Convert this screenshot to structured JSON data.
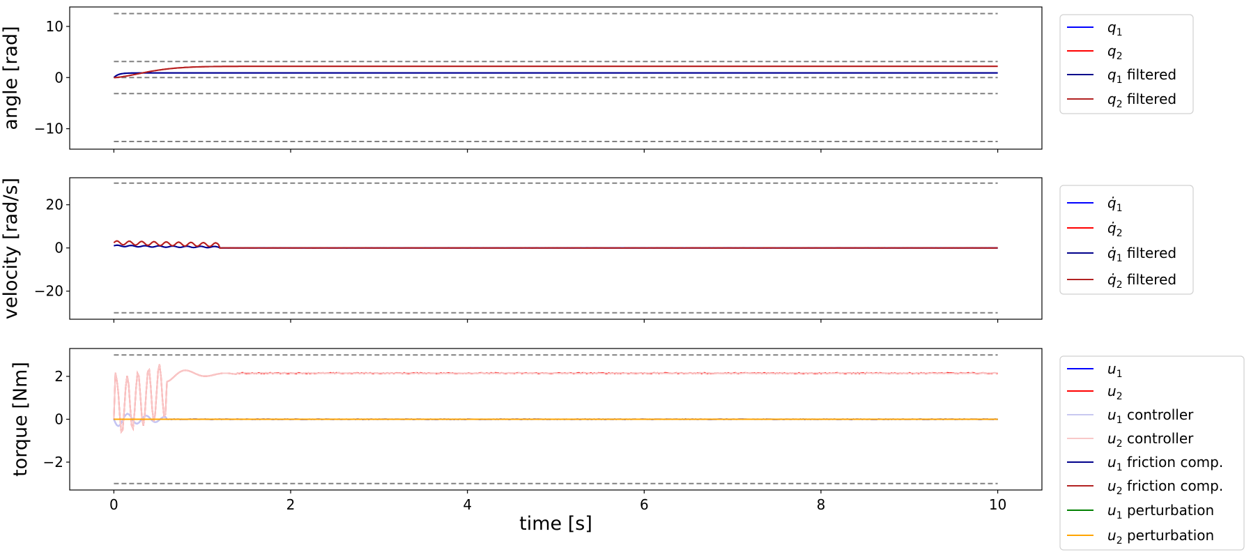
{
  "chart_data": [
    {
      "type": "line",
      "ylabel": "angle [rad]",
      "xlim": [
        -0.5,
        10.5
      ],
      "ylim": [
        -14,
        13.8
      ],
      "yticks": [
        10,
        0,
        -10
      ],
      "yticklabels": [
        "10",
        "0",
        "−10"
      ],
      "xticks": [
        0,
        2,
        4,
        6,
        8,
        10
      ],
      "show_xticklabels": false,
      "limit_lines": [
        12.5,
        3.14,
        0,
        -3.14,
        -12.5
      ],
      "legend_position": "outside-right",
      "series": [
        {
          "name": "q_1",
          "label_main": "q",
          "label_sub": "1",
          "label_suffix": "",
          "color": "#0000ff",
          "kind": "step",
          "start": 0,
          "final": 0.9,
          "tau": 0.05
        },
        {
          "name": "q_2",
          "label_main": "q",
          "label_sub": "2",
          "label_suffix": "",
          "color": "#ff0000",
          "kind": "ramp",
          "start": 0,
          "final": 2.2,
          "tau": 0.45
        },
        {
          "name": "q_1 filtered",
          "label_main": "q",
          "label_sub": "1",
          "label_suffix": " filtered",
          "color": "#00008b",
          "kind": "step",
          "start": 0,
          "final": 0.9,
          "tau": 0.05
        },
        {
          "name": "q_2 filtered",
          "label_main": "q",
          "label_sub": "2",
          "label_suffix": " filtered",
          "color": "#b22222",
          "kind": "ramp",
          "start": 0,
          "final": 2.2,
          "tau": 0.45
        }
      ]
    },
    {
      "type": "line",
      "ylabel": "velocity [rad/s]",
      "xlim": [
        -0.5,
        10.5
      ],
      "ylim": [
        -33,
        32.5
      ],
      "yticks": [
        20,
        0,
        -20
      ],
      "yticklabels": [
        "20",
        "0",
        "−20"
      ],
      "xticks": [
        0,
        2,
        4,
        6,
        8,
        10
      ],
      "show_xticklabels": false,
      "limit_lines": [
        30,
        -30
      ],
      "legend_position": "outside-right",
      "series": [
        {
          "name": "dq_1",
          "label_main": "q̇",
          "label_sub": "1",
          "label_suffix": "",
          "color": "#0000ff",
          "kind": "vel1"
        },
        {
          "name": "dq_2",
          "label_main": "q̇",
          "label_sub": "2",
          "label_suffix": "",
          "color": "#ff0000",
          "kind": "vel2"
        },
        {
          "name": "dq_1 filtered",
          "label_main": "q̇",
          "label_sub": "1",
          "label_suffix": " filtered",
          "color": "#00008b",
          "kind": "vel1"
        },
        {
          "name": "dq_2 filtered",
          "label_main": "q̇",
          "label_sub": "2",
          "label_suffix": " filtered",
          "color": "#b22222",
          "kind": "vel2"
        }
      ]
    },
    {
      "type": "line",
      "ylabel": "torque [Nm]",
      "xlabel": "time [s]",
      "xlim": [
        -0.5,
        10.5
      ],
      "ylim": [
        -3.3,
        3.3
      ],
      "yticks": [
        2,
        0,
        -2
      ],
      "yticklabels": [
        "2",
        "0",
        "−2"
      ],
      "xticks": [
        0,
        2,
        4,
        6,
        8,
        10
      ],
      "xticklabels": [
        "0",
        "2",
        "4",
        "6",
        "8",
        "10"
      ],
      "show_xticklabels": true,
      "limit_lines": [
        3,
        -3
      ],
      "legend_position": "outside-right",
      "series": [
        {
          "name": "u_1",
          "label_main": "u",
          "label_sub": "1",
          "label_suffix": "",
          "color": "#0000ff",
          "kind": "u1"
        },
        {
          "name": "u_2",
          "label_main": "u",
          "label_sub": "2",
          "label_suffix": "",
          "color": "#ff0000",
          "kind": "u2"
        },
        {
          "name": "u_1 controller",
          "label_main": "u",
          "label_sub": "1",
          "label_suffix": " controller",
          "color": "#c8c8f0",
          "kind": "u1"
        },
        {
          "name": "u_2 controller",
          "label_main": "u",
          "label_sub": "2",
          "label_suffix": " controller",
          "color": "#f8c8c8",
          "kind": "u2"
        },
        {
          "name": "u_1 friction comp.",
          "label_main": "u",
          "label_sub": "1",
          "label_suffix": " friction comp.",
          "color": "#00008b",
          "kind": "zero"
        },
        {
          "name": "u_2 friction comp.",
          "label_main": "u",
          "label_sub": "2",
          "label_suffix": " friction comp.",
          "color": "#b22222",
          "kind": "zero"
        },
        {
          "name": "u_1 perturbation",
          "label_main": "u",
          "label_sub": "1",
          "label_suffix": " perturbation",
          "color": "#008000",
          "kind": "zero"
        },
        {
          "name": "u_2 perturbation",
          "label_main": "u",
          "label_sub": "2",
          "label_suffix": " perturbation",
          "color": "#ffa500",
          "kind": "zero"
        }
      ]
    }
  ]
}
